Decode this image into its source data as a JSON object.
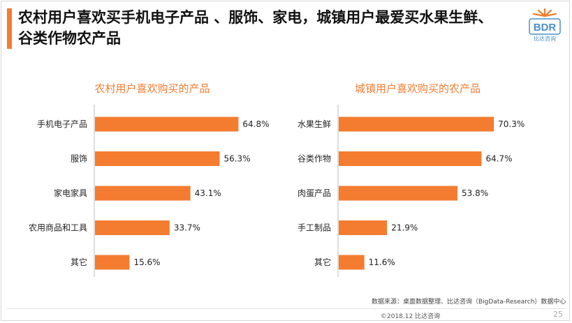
{
  "title": "农村用户喜欢买手机电子产品 、服饰、家电，城镇用户最爱买水果生鲜、谷类作物农产品",
  "logo": {
    "text": "BDR",
    "subtext": "比达咨询",
    "icon": "bdr-logo-icon"
  },
  "colors": {
    "accent": "#f47c30",
    "bar": "#f47c30",
    "logo_blue": "#4a90c8"
  },
  "chart_data": [
    {
      "type": "bar",
      "orientation": "horizontal",
      "title": "农村用户喜欢购买的产品",
      "categories": [
        "手机电子产品",
        "服饰",
        "家电家具",
        "农用商品和工具",
        "其它"
      ],
      "values": [
        64.8,
        56.3,
        43.1,
        33.7,
        15.6
      ],
      "value_labels": [
        "64.8%",
        "56.3%",
        "43.1%",
        "33.7%",
        "15.6%"
      ],
      "xlim": [
        0,
        100
      ],
      "grid": false
    },
    {
      "type": "bar",
      "orientation": "horizontal",
      "title": "城镇用户喜欢购买的农产品",
      "categories": [
        "水果生鲜",
        "谷类作物",
        "肉蛋产品",
        "手工制品",
        "其它"
      ],
      "values": [
        70.3,
        64.7,
        53.8,
        21.9,
        11.6
      ],
      "value_labels": [
        "70.3%",
        "64.7%",
        "53.8%",
        "21.9%",
        "11.6%"
      ],
      "xlim": [
        0,
        100
      ],
      "grid": false
    }
  ],
  "source": "数据来源：桌面数据整理、比达咨询（BigData-Research）数据中心",
  "copyright": "©2018.12 比达咨询",
  "page_number": "25"
}
